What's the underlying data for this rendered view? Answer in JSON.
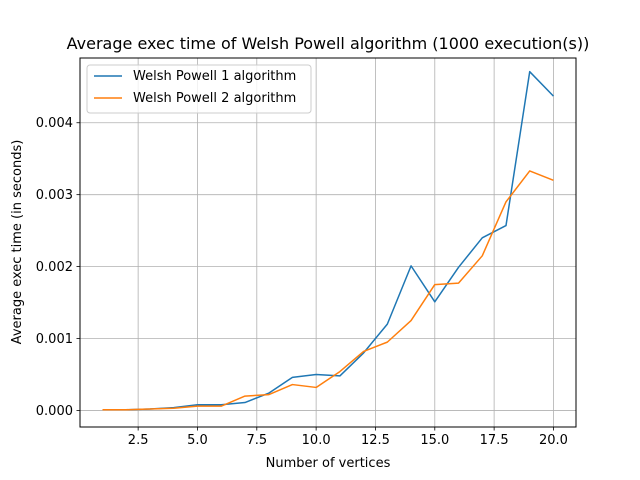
{
  "chart_data": {
    "type": "line",
    "title": "Average exec time of Welsh Powell algorithm (1000 execution(s))",
    "xlabel": "Number of vertices",
    "ylabel": "Average exec time (in seconds)",
    "xlim": [
      0.05,
      20.95
    ],
    "ylim": [
      -0.00023,
      0.0049
    ],
    "xticks": [
      2.5,
      5.0,
      7.5,
      10.0,
      12.5,
      15.0,
      17.5,
      20.0
    ],
    "xtick_labels": [
      "2.5",
      "5.0",
      "7.5",
      "10.0",
      "12.5",
      "15.0",
      "17.5",
      "20.0"
    ],
    "yticks": [
      0.0,
      0.001,
      0.002,
      0.003,
      0.004
    ],
    "ytick_labels": [
      "0.000",
      "0.001",
      "0.002",
      "0.003",
      "0.004"
    ],
    "grid": true,
    "legend_position": "top-left",
    "x": [
      1,
      2,
      3,
      4,
      5,
      6,
      7,
      8,
      9,
      10,
      11,
      12,
      13,
      14,
      15,
      16,
      17,
      18,
      19,
      20
    ],
    "series": [
      {
        "name": "Welsh Powell 1 algorithm",
        "color": "#1f77b4",
        "values": [
          1e-05,
          1e-05,
          2e-05,
          4e-05,
          8e-05,
          8e-05,
          0.00011,
          0.00024,
          0.00046,
          0.0005,
          0.00048,
          0.0008,
          0.0012,
          0.00201,
          0.00151,
          0.00199,
          0.0024,
          0.00257,
          0.00471,
          0.00437
        ]
      },
      {
        "name": "Welsh Powell 2 algorithm",
        "color": "#ff7f0e",
        "values": [
          1e-05,
          1e-05,
          2e-05,
          3e-05,
          6e-05,
          6e-05,
          0.0002,
          0.00022,
          0.00036,
          0.00032,
          0.00054,
          0.00082,
          0.00095,
          0.00125,
          0.00175,
          0.00177,
          0.00215,
          0.0029,
          0.00333,
          0.0032
        ]
      }
    ]
  }
}
